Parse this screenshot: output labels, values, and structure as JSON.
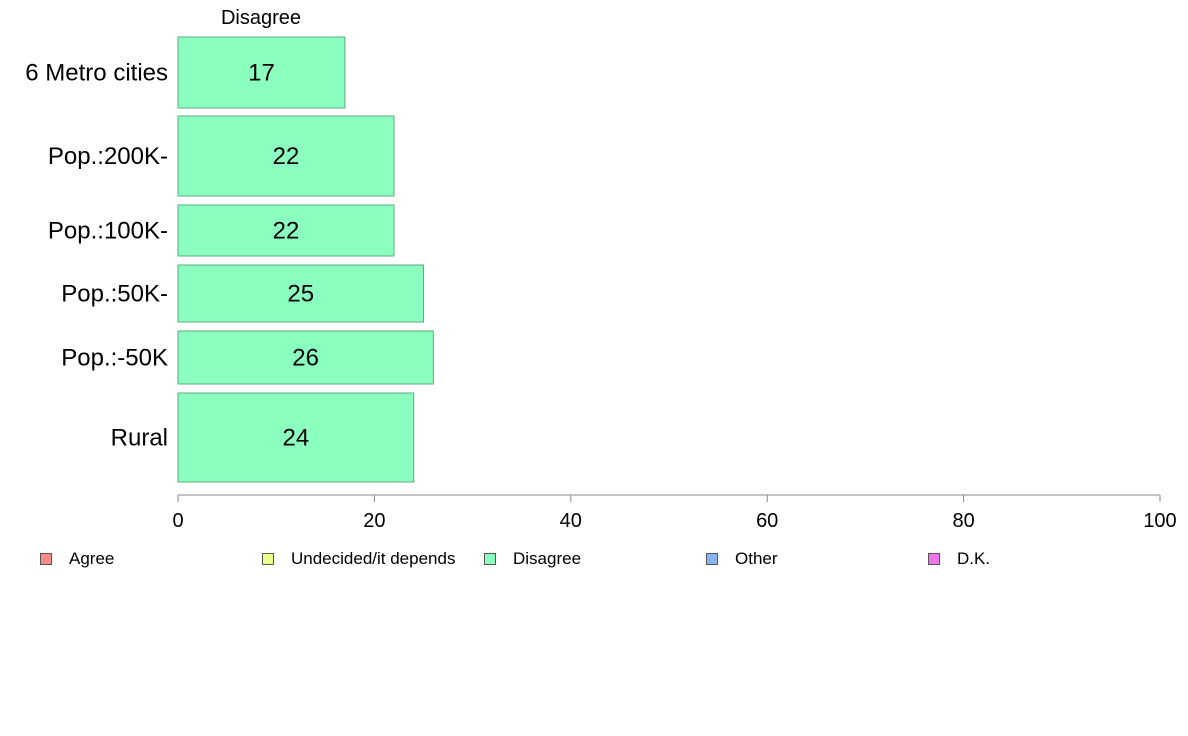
{
  "chart_data": {
    "type": "bar",
    "orientation": "horizontal",
    "title": "Disagree",
    "categories": [
      "6 Metro cities",
      "Pop.:200K-",
      "Pop.:100K-",
      "Pop.:50K-",
      "Pop.:-50K",
      "Rural"
    ],
    "values": [
      17,
      22,
      22,
      25,
      26,
      24
    ],
    "data_labels": [
      "17",
      "22",
      "22",
      "25",
      "26",
      "24"
    ],
    "xlim": [
      0,
      100
    ],
    "xticks": [
      0,
      20,
      40,
      60,
      80,
      100
    ],
    "xtick_labels": [
      "0",
      "20",
      "40",
      "60",
      "80",
      "100"
    ],
    "bar_color": "#8bffc0",
    "bar_stroke": "#5fa880",
    "grid": false,
    "legend_position": "bottom",
    "legend": [
      {
        "label": "Agree",
        "color": "#f78b8b"
      },
      {
        "label": "Undecided/it depends",
        "color": "#eeff88"
      },
      {
        "label": "Disagree",
        "color": "#8bffc0"
      },
      {
        "label": "Other",
        "color": "#88b4f5"
      },
      {
        "label": "D.K.",
        "color": "#ee77ee"
      }
    ]
  }
}
